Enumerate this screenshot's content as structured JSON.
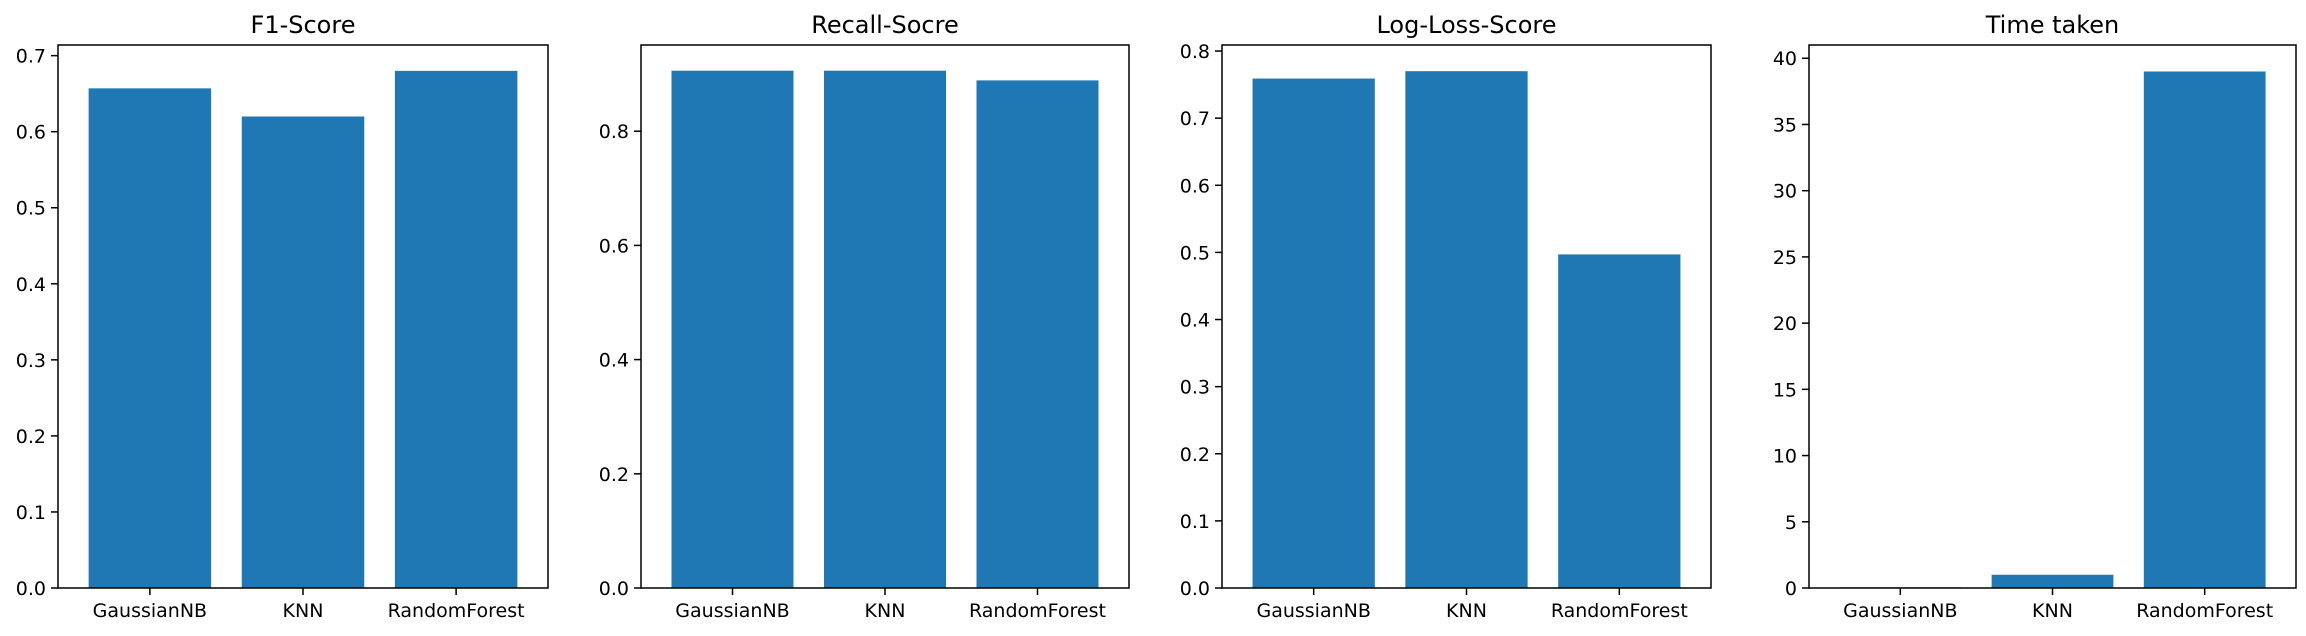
{
  "chart_data": [
    {
      "type": "bar",
      "title": "F1-Score",
      "categories": [
        "GaussianNB",
        "KNN",
        "RandomForest"
      ],
      "values": [
        0.657,
        0.62,
        0.68
      ],
      "ylim": [
        0,
        0.714
      ],
      "yticks": [
        0.0,
        0.1,
        0.2,
        0.3,
        0.4,
        0.5,
        0.6,
        0.7
      ],
      "ytick_labels": [
        "0.0",
        "0.1",
        "0.2",
        "0.3",
        "0.4",
        "0.5",
        "0.6",
        "0.7"
      ],
      "grid": false,
      "bar_color": "#1f77b4"
    },
    {
      "type": "bar",
      "title": "Recall-Socre",
      "categories": [
        "GaussianNB",
        "KNN",
        "RandomForest"
      ],
      "values": [
        0.906,
        0.906,
        0.889
      ],
      "ylim": [
        0,
        0.951
      ],
      "yticks": [
        0.0,
        0.2,
        0.4,
        0.6,
        0.8
      ],
      "ytick_labels": [
        "0.0",
        "0.2",
        "0.4",
        "0.6",
        "0.8"
      ],
      "grid": false,
      "bar_color": "#1f77b4"
    },
    {
      "type": "bar",
      "title": "Log-Loss-Score",
      "categories": [
        "GaussianNB",
        "KNN",
        "RandomForest"
      ],
      "values": [
        0.759,
        0.77,
        0.497
      ],
      "ylim": [
        0,
        0.809
      ],
      "yticks": [
        0.0,
        0.1,
        0.2,
        0.3,
        0.4,
        0.5,
        0.6,
        0.7,
        0.8
      ],
      "ytick_labels": [
        "0.0",
        "0.1",
        "0.2",
        "0.3",
        "0.4",
        "0.5",
        "0.6",
        "0.7",
        "0.8"
      ],
      "grid": false,
      "bar_color": "#1f77b4"
    },
    {
      "type": "bar",
      "title": "Time taken",
      "categories": [
        "GaussianNB",
        "KNN",
        "RandomForest"
      ],
      "values": [
        0.05,
        1.0,
        39.0
      ],
      "ylim": [
        0,
        41
      ],
      "yticks": [
        0,
        5,
        10,
        15,
        20,
        25,
        30,
        35,
        40
      ],
      "ytick_labels": [
        "0",
        "5",
        "10",
        "15",
        "20",
        "25",
        "30",
        "35",
        "40"
      ],
      "grid": false,
      "bar_color": "#1f77b4"
    }
  ]
}
